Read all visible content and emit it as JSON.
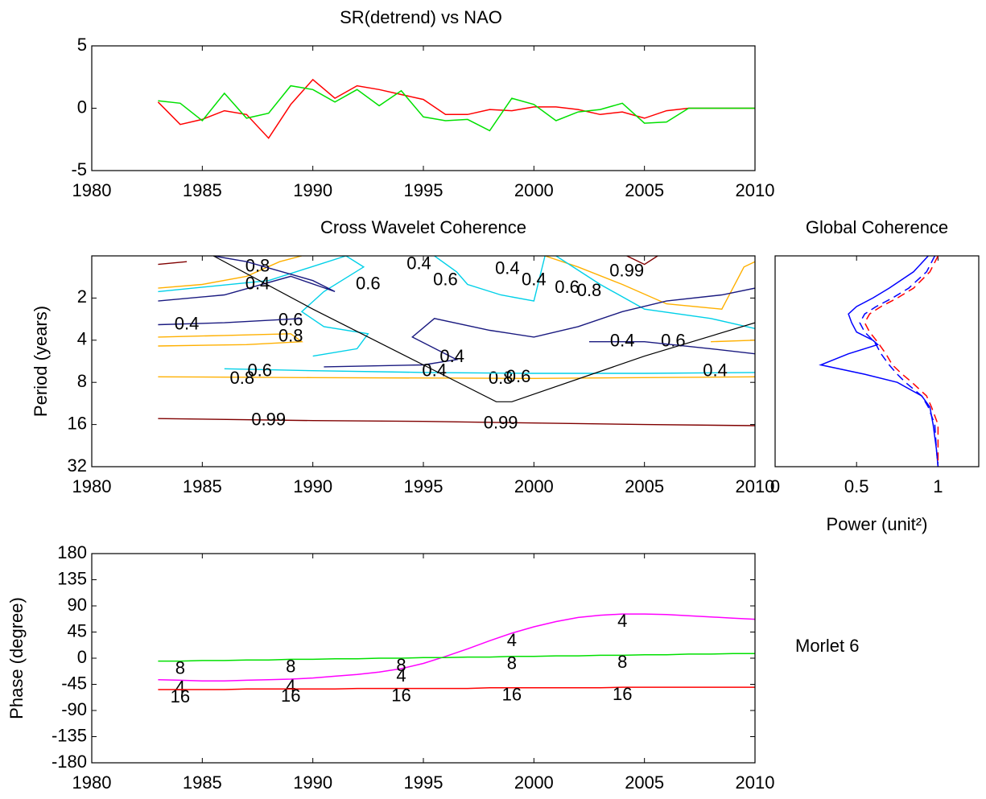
{
  "chart_data": [
    {
      "type": "line",
      "title": "SR(detrend) vs NAO",
      "x": [
        1983,
        1984,
        1985,
        1986,
        1987,
        1988,
        1989,
        1990,
        1991,
        1992,
        1993,
        1994,
        1995,
        1996,
        1997,
        1998,
        1999,
        2000,
        2001,
        2002,
        2003,
        2004,
        2005,
        2006,
        2007,
        2008,
        2009,
        2010
      ],
      "series": [
        {
          "color": "#ff0000",
          "values": [
            0.5,
            -1.3,
            -0.9,
            -0.2,
            -0.5,
            -2.4,
            0.3,
            2.3,
            0.8,
            1.8,
            1.5,
            1.1,
            0.7,
            -0.5,
            -0.5,
            -0.1,
            -0.2,
            0.1,
            0.1,
            -0.1,
            -0.5,
            -0.3,
            -0.8,
            -0.2,
            0,
            0,
            0,
            0
          ]
        },
        {
          "color": "#00e000",
          "values": [
            0.6,
            0.4,
            -1.0,
            1.2,
            -0.8,
            -0.4,
            1.8,
            1.5,
            0.5,
            1.5,
            0.2,
            1.4,
            -0.7,
            -1.0,
            -0.9,
            -1.8,
            0.8,
            0.3,
            -1.0,
            -0.3,
            -0.1,
            0.4,
            -1.2,
            -1.1,
            0,
            0,
            0,
            0
          ]
        }
      ],
      "xlim": [
        1980,
        2010
      ],
      "xticks": [
        1980,
        1985,
        1990,
        1995,
        2000,
        2005,
        2010
      ],
      "ylim": [
        -5,
        5
      ],
      "yticks": [
        -5,
        0,
        5
      ]
    },
    {
      "type": "contour",
      "title": "Cross Wavelet Coherence",
      "ylabel": "Period (years)",
      "xlim": [
        1980,
        2010
      ],
      "xticks": [
        1980,
        1985,
        1990,
        1995,
        2000,
        2005,
        2010
      ],
      "ylim": [
        1,
        32
      ],
      "yticks": [
        2,
        4,
        8,
        16,
        32
      ],
      "yscale": "log2",
      "yreverse": true,
      "coi": {
        "color": "#000000",
        "x": [
          1985.5,
          1990,
          1995,
          1998.3,
          1999,
          2005,
          2010
        ],
        "y": [
          1,
          2.4,
          6,
          11,
          11,
          5.2,
          3
        ]
      },
      "contours": [
        {
          "level": 0.99,
          "color": "#800000",
          "x": [
            1983,
            1990,
            1995,
            2000,
            2005,
            2010
          ],
          "y": [
            14.5,
            15,
            15.2,
            15.6,
            16,
            16.3
          ],
          "label_x": [
            1988,
            1998.5
          ],
          "label_y": [
            15,
            15.8
          ]
        },
        {
          "level": 0.99,
          "color": "#800000",
          "x": [
            2004.2,
            2005,
            2005.6
          ],
          "y": [
            1,
            1.15,
            1
          ],
          "label_x": [
            2004.2
          ],
          "label_y": [
            1.3
          ]
        },
        {
          "level": 0.99,
          "color": "#800000",
          "x": [
            1983,
            1984.3
          ],
          "y": [
            1.15,
            1.1
          ],
          "label_x": [],
          "label_y": []
        },
        {
          "level": 0.8,
          "color": "#ffb000",
          "x": [
            1983,
            1990,
            2000,
            2010
          ],
          "y": [
            7.3,
            7.4,
            7.5,
            7.3
          ],
          "label_x": [
            1986.8,
            1998.5
          ],
          "label_y": [
            7.6,
            7.6
          ]
        },
        {
          "level": 0.8,
          "color": "#ffb000",
          "x": [
            1983,
            1987,
            1989.5,
            1989,
            1986,
            1983
          ],
          "y": [
            4.4,
            4.3,
            4.1,
            3.6,
            3.7,
            3.8
          ],
          "label_x": [
            1989
          ],
          "label_y": [
            3.8
          ]
        },
        {
          "level": 0.8,
          "color": "#ffb000",
          "x": [
            1983,
            1985,
            1987,
            1988.5,
            1989.5
          ],
          "y": [
            1.7,
            1.6,
            1.4,
            1.1,
            1
          ],
          "label_x": [
            1987.5
          ],
          "label_y": [
            1.2
          ]
        },
        {
          "level": 0.8,
          "color": "#ffb000",
          "x": [
            2000.5,
            2002,
            2004,
            2006,
            2008.5,
            2009.5,
            2010
          ],
          "y": [
            1,
            1.2,
            1.6,
            2.2,
            2.4,
            1.2,
            1.1
          ],
          "label_x": [
            2002.5
          ],
          "label_y": [
            1.8
          ]
        },
        {
          "level": 0.8,
          "color": "#ffb000",
          "x": [
            2008,
            2010
          ],
          "y": [
            4.1,
            4.0
          ],
          "label_x": [],
          "label_y": []
        },
        {
          "level": 0.6,
          "color": "#00d0e8",
          "x": [
            1986,
            1990,
            1995,
            2000,
            2005,
            2010
          ],
          "y": [
            6.4,
            6.6,
            6.8,
            6.9,
            6.9,
            6.8
          ],
          "label_x": [
            1987.6,
            1999.3
          ],
          "label_y": [
            6.7,
            7.4
          ]
        },
        {
          "level": 0.6,
          "color": "#00d0e8",
          "x": [
            1983,
            1988,
            1991.5,
            1992.3,
            1990.5,
            1989.5,
            1990.5,
            1992.5,
            1992,
            1990
          ],
          "y": [
            1.8,
            1.5,
            1.0,
            1.2,
            1.8,
            2.5,
            3.2,
            3.6,
            4.6,
            5.2
          ],
          "label_x": [
            1992.5,
            1989
          ],
          "label_y": [
            1.6,
            2.9
          ]
        },
        {
          "level": 0.6,
          "color": "#00d0e8",
          "x": [
            1995.5,
            1996.5,
            1997,
            1998.5,
            2000,
            2000.5
          ],
          "y": [
            1,
            1.3,
            1.6,
            1.9,
            2.1,
            1
          ],
          "label_x": [
            1996
          ],
          "label_y": [
            1.5
          ]
        },
        {
          "level": 0.6,
          "color": "#00d0e8",
          "x": [
            2001,
            2003,
            2005,
            2008,
            2010
          ],
          "y": [
            1,
            1.6,
            2.4,
            2.8,
            3.3
          ],
          "label_x": [
            2001.5,
            2006.3
          ],
          "label_y": [
            1.7,
            4.1
          ]
        },
        {
          "level": 0.4,
          "color": "#1a1a80",
          "x": [
            1983,
            1986,
            1989,
            1991,
            1990,
            1987,
            1985.5
          ],
          "y": [
            2.1,
            1.9,
            1.4,
            1.8,
            1.5,
            1.1,
            1
          ],
          "label_x": [
            1987.5
          ],
          "label_y": [
            1.6
          ]
        },
        {
          "level": 0.4,
          "color": "#1a1a80",
          "x": [
            1983,
            1986,
            1989.5
          ],
          "y": [
            3.1,
            3.0,
            2.8
          ],
          "label_x": [
            1984.3
          ],
          "label_y": [
            3.1
          ]
        },
        {
          "level": 0.4,
          "color": "#1a1a80",
          "x": [
            1990.5,
            1995,
            1996.5,
            1994.5,
            1995.5,
            1998,
            2000,
            2002,
            2004,
            2006,
            2008.5,
            2010
          ],
          "y": [
            6.2,
            6.0,
            5.5,
            3.8,
            2.8,
            3.4,
            3.8,
            3.2,
            2.5,
            2.1,
            1.9,
            1.7
          ],
          "label_x": [
            1996.3,
            1995.5,
            1994.8,
            1998.8,
            2000
          ],
          "label_y": [
            5.3,
            6.7,
            1.15,
            1.25,
            1.5
          ]
        },
        {
          "level": 0.4,
          "color": "#1a1a80",
          "x": [
            2002.5,
            2005,
            2008,
            2010
          ],
          "y": [
            4.1,
            4.1,
            4.6,
            5.0
          ],
          "label_x": [
            2004,
            2008.2
          ],
          "label_y": [
            4.1,
            6.7
          ]
        }
      ]
    },
    {
      "type": "profile",
      "title": "Global Coherence",
      "xlabel": "Power (unit²)",
      "xlim": [
        0,
        1.25
      ],
      "xticks": [
        0,
        0.5,
        1
      ],
      "ylim": [
        1,
        32
      ],
      "yscale": "log2",
      "yreverse": true,
      "y": [
        1,
        1.3,
        1.7,
        2,
        2.3,
        2.6,
        3,
        3.5,
        4,
        4.3,
        5,
        6,
        7,
        8,
        10,
        12,
        16,
        24,
        32
      ],
      "series": [
        {
          "color": "#0000ff",
          "dash": false,
          "x": [
            0.94,
            0.85,
            0.7,
            0.6,
            0.5,
            0.45,
            0.47,
            0.5,
            0.6,
            0.63,
            0.45,
            0.28,
            0.55,
            0.75,
            0.9,
            0.95,
            0.97,
            0.99,
            1.0
          ]
        },
        {
          "color": "#ff0000",
          "dash": true,
          "x": [
            1.0,
            0.95,
            0.85,
            0.75,
            0.65,
            0.58,
            0.55,
            0.58,
            0.62,
            0.64,
            0.68,
            0.72,
            0.78,
            0.84,
            0.93,
            0.96,
            1.0,
            1.0,
            1.0
          ]
        },
        {
          "color": "#0000ff",
          "dash": true,
          "x": [
            0.98,
            0.93,
            0.82,
            0.72,
            0.62,
            0.55,
            0.52,
            0.55,
            0.6,
            0.62,
            0.65,
            0.7,
            0.75,
            0.8,
            0.9,
            0.94,
            0.98,
            0.99,
            1.0
          ]
        }
      ]
    },
    {
      "type": "line",
      "ylabel": "Phase (degree)",
      "annotation": "Morlet  6",
      "x": [
        1983,
        1984,
        1985,
        1986,
        1987,
        1988,
        1989,
        1990,
        1991,
        1992,
        1993,
        1994,
        1995,
        1996,
        1997,
        1998,
        1999,
        2000,
        2001,
        2002,
        2003,
        2004,
        2005,
        2006,
        2007,
        2008,
        2009,
        2010
      ],
      "label_x": [
        1984,
        1989,
        1994,
        1999,
        2004
      ],
      "series": [
        {
          "name": "4",
          "color": "#ff00ff",
          "values": [
            -37,
            -38,
            -39,
            -39,
            -38,
            -37,
            -36,
            -34,
            -31,
            -28,
            -24,
            -18,
            -9,
            3,
            16,
            30,
            43,
            54,
            63,
            70,
            74,
            76,
            76,
            75,
            73,
            71,
            69,
            67
          ]
        },
        {
          "name": "8",
          "color": "#00e000",
          "values": [
            -5,
            -5,
            -4,
            -4,
            -3,
            -3,
            -2,
            -2,
            -1,
            -1,
            0,
            0,
            1,
            1,
            2,
            2,
            3,
            3,
            4,
            4,
            5,
            5,
            6,
            6,
            7,
            7,
            8,
            8
          ]
        },
        {
          "name": "16",
          "color": "#ff0000",
          "values": [
            -54,
            -54,
            -54,
            -54,
            -53,
            -53,
            -53,
            -53,
            -53,
            -52,
            -52,
            -52,
            -52,
            -52,
            -52,
            -51,
            -51,
            -51,
            -51,
            -51,
            -51,
            -50,
            -50,
            -50,
            -50,
            -50,
            -50,
            -50
          ]
        }
      ],
      "xlim": [
        1980,
        2010
      ],
      "xticks": [
        1980,
        1985,
        1990,
        1995,
        2000,
        2005,
        2010
      ],
      "ylim": [
        -180,
        180
      ],
      "yticks": [
        -180,
        -135,
        -90,
        -45,
        0,
        45,
        90,
        135,
        180
      ]
    }
  ]
}
